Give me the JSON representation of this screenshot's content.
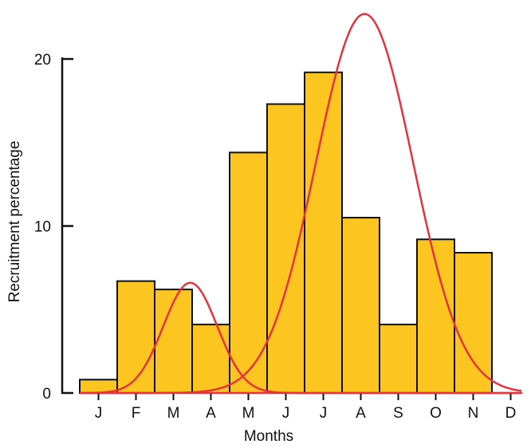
{
  "chart_data": {
    "type": "bar",
    "xlabel": "Months",
    "ylabel": "Recruitment percentage",
    "categories": [
      "J",
      "F",
      "M",
      "A",
      "M",
      "J",
      "J",
      "A",
      "S",
      "O",
      "N",
      "D"
    ],
    "values": [
      0.8,
      6.7,
      6.2,
      4.1,
      14.4,
      17.3,
      19.2,
      10.5,
      4.1,
      9.2,
      8.4,
      0
    ],
    "ylim": [
      0,
      22
    ],
    "yticks": [
      0,
      10,
      20
    ],
    "grid": false,
    "colors": {
      "bar_fill": "#FDC520",
      "bar_stroke": "#111111",
      "curve": "#E8323C"
    },
    "fitted_curves": [
      {
        "mean": 2.95,
        "sd": 0.72,
        "peak": 6.6
      },
      {
        "mean": 7.6,
        "sd": 1.3,
        "peak": 22.7
      }
    ]
  }
}
